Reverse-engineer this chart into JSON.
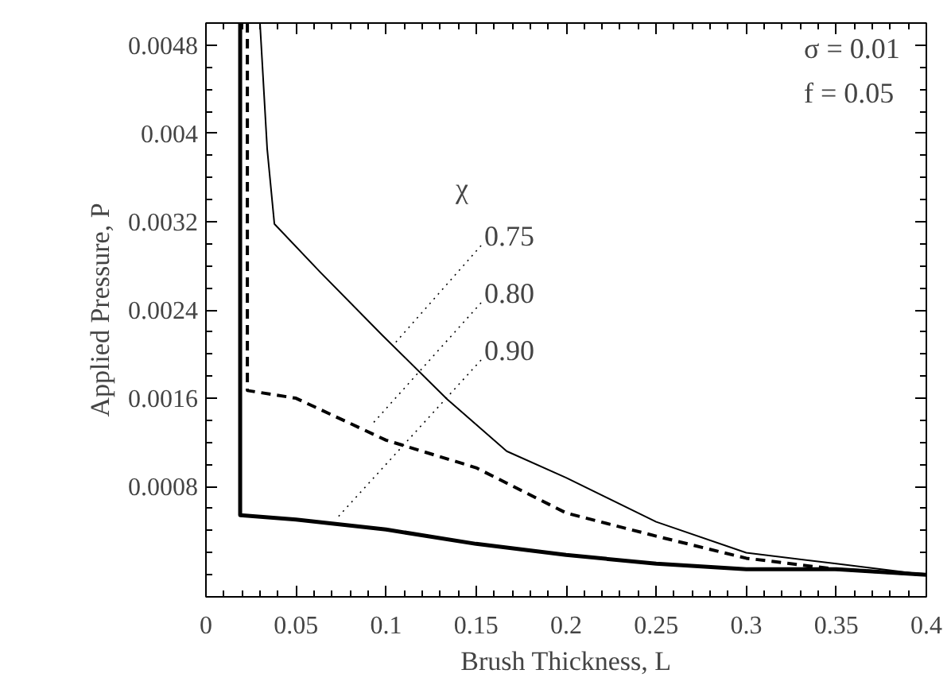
{
  "chart_data": {
    "type": "line",
    "xlabel": "Brush Thickness, L",
    "ylabel": "Applied Pressure, P",
    "xlim": [
      0,
      0.4
    ],
    "ylim": [
      -0.0002,
      0.005
    ],
    "xticks": [
      0,
      0.05,
      0.1,
      0.15,
      0.2,
      0.25,
      0.3,
      0.35,
      0.4
    ],
    "yticks": [
      0.0008,
      0.0016,
      0.0024,
      0.0032,
      0.004,
      0.0048
    ],
    "grid": false,
    "marker": "none",
    "series": [
      {
        "color": "#000000",
        "line_style": "solid",
        "x": [
          0.03,
          0.034,
          0.038,
          0.063,
          0.098,
          0.134,
          0.167,
          0.2,
          0.25,
          0.3,
          0.35,
          0.4
        ],
        "values": [
          0.005,
          0.00386,
          0.00318,
          0.00275,
          0.00217,
          0.00159,
          0.00112,
          0.00088,
          0.00048,
          0.0002,
          0.0001,
          0
        ]
      },
      {
        "color": "#000000",
        "line_style": "dashed",
        "x": [
          0.023,
          0.023,
          0.05,
          0.1,
          0.15,
          0.2,
          0.25,
          0.3,
          0.35,
          0.4
        ],
        "values": [
          0.005,
          0.00167,
          0.0016,
          0.00122,
          0.00097,
          0.00056,
          0.00035,
          0.00015,
          5e-05,
          0
        ]
      },
      {
        "color": "#000000",
        "line_style": "solid",
        "x": [
          0.019,
          0.019,
          0.05,
          0.1,
          0.15,
          0.2,
          0.25,
          0.3,
          0.35,
          0.4
        ],
        "values": [
          0.005,
          0.00054,
          0.0005,
          0.00041,
          0.00028,
          0.00018,
          0.0001,
          5e-05,
          5e-05,
          0
        ]
      }
    ],
    "annotations": [
      "σ = 0.01",
      "f = 0.05",
      "χ",
      {
        "text": "0.75",
        "x": 0.105,
        "y": 0.0021
      },
      {
        "text": "0.80",
        "x": 0.092,
        "y": 0.00136
      },
      {
        "text": "0.90",
        "x": 0.072,
        "y": 0.0005
      }
    ]
  }
}
